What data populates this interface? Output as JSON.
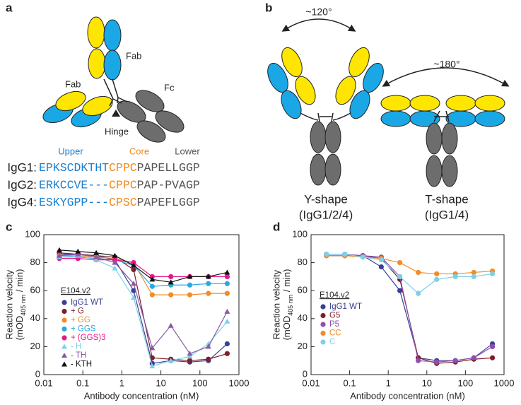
{
  "panel_a": {
    "label": "a",
    "fab_top": "Fab",
    "fab_left": "Fab",
    "fc": "Fc",
    "hinge": "Hinge",
    "regions": {
      "upper": "Upper",
      "core": "Core",
      "lower": "Lower"
    },
    "sequences": [
      {
        "name": "IgG1:",
        "upper": "EPKSCDKTHT",
        "core": "CPPC",
        "lower": "PAPELLGGP"
      },
      {
        "name": "IgG2:",
        "upper": "ERKCCVE---",
        "core": "CPPC",
        "lower": "PAP-PVAGP"
      },
      {
        "name": "IgG4:",
        "upper": "ESKYGPP---",
        "core": "CPSC",
        "lower": "PAPEFLGGP"
      }
    ]
  },
  "panel_b": {
    "label": "b",
    "angle_y": "~120°",
    "angle_t": "~180°",
    "y_shape": "Y-shape",
    "y_shape_note": "(IgG1/2/4)",
    "t_shape": "T-shape",
    "t_shape_note": "(IgG1/4)"
  },
  "chart_data": [
    {
      "type": "scatter",
      "panel": "c",
      "xscale": "log",
      "xlabel": "Antibody concentration (nM)",
      "ylabel": "Reaction velocity",
      "ylabel_unit": [
        "(mOD",
        "405 nm",
        " / min)"
      ],
      "legend_title": "E104.v2",
      "x": [
        0.025,
        0.075,
        0.22,
        0.66,
        2,
        6,
        18,
        55,
        165,
        500
      ],
      "xlim": [
        0.01,
        1000
      ],
      "xticks": [
        0.01,
        0.1,
        1,
        10,
        100,
        1000
      ],
      "ylim": [
        0,
        100
      ],
      "yticks": [
        0,
        20,
        40,
        60,
        80,
        100
      ],
      "series": [
        {
          "name": "IgG1 WT",
          "color": "#3a3f98",
          "marker": "circle",
          "values": [
            86,
            86,
            85,
            82,
            60,
            8,
            10,
            9,
            10,
            22
          ]
        },
        {
          "name": "+ G",
          "color": "#7d1f2e",
          "marker": "circle",
          "values": [
            87,
            86,
            85,
            84,
            75,
            12,
            11,
            10,
            11,
            15
          ]
        },
        {
          "name": "+ GG",
          "color": "#f38b26",
          "marker": "circle",
          "values": [
            85,
            85,
            84,
            83,
            80,
            57,
            57,
            57,
            58,
            58
          ]
        },
        {
          "name": "+ GGS",
          "color": "#2aa9df",
          "marker": "circle",
          "values": [
            84,
            84,
            83,
            82,
            78,
            63,
            64,
            64,
            65,
            65
          ]
        },
        {
          "name": "+ (GGS)3",
          "color": "#e5178b",
          "marker": "circle",
          "values": [
            83,
            83,
            82,
            82,
            80,
            70,
            70,
            70,
            70,
            70
          ]
        },
        {
          "name": "- H",
          "color": "#7fd0e6",
          "marker": "triangle",
          "values": [
            84,
            85,
            82,
            76,
            55,
            6,
            10,
            13,
            22,
            38
          ]
        },
        {
          "name": "- TH",
          "color": "#8a58a6",
          "marker": "triangle",
          "values": [
            85,
            86,
            84,
            80,
            65,
            19,
            35,
            15,
            20,
            45
          ]
        },
        {
          "name": "- KTH",
          "color": "#111111",
          "marker": "triangle",
          "values": [
            89,
            88,
            87,
            85,
            78,
            68,
            66,
            70,
            70,
            73
          ]
        }
      ]
    },
    {
      "type": "scatter",
      "panel": "d",
      "xscale": "log",
      "xlabel": "Antibody concentration (nM)",
      "ylabel": "Reaction velocity",
      "ylabel_unit": [
        "(mOD",
        "405 nm",
        " / min)"
      ],
      "legend_title": "E104.v2",
      "x": [
        0.025,
        0.075,
        0.22,
        0.66,
        2,
        6,
        18,
        55,
        165,
        500
      ],
      "xlim": [
        0.01,
        1000
      ],
      "xticks": [
        0.01,
        0.1,
        1,
        10,
        100,
        1000
      ],
      "ylim": [
        0,
        100
      ],
      "yticks": [
        0,
        20,
        40,
        60,
        80,
        100
      ],
      "series": [
        {
          "name": "IgG1 WT",
          "color": "#3a3f98",
          "marker": "circle",
          "values": [
            85,
            85,
            85,
            77,
            60,
            12,
            10,
            10,
            12,
            22
          ]
        },
        {
          "name": "G5",
          "color": "#7d1f2e",
          "marker": "circle",
          "values": [
            85,
            85,
            85,
            83,
            68,
            12,
            8,
            9,
            11,
            12
          ]
        },
        {
          "name": "P5",
          "color": "#8e4fb0",
          "marker": "circle",
          "values": [
            86,
            86,
            85,
            84,
            70,
            10,
            9,
            10,
            12,
            20
          ]
        },
        {
          "name": "CC",
          "color": "#f38b26",
          "marker": "circle",
          "values": [
            85,
            85,
            84,
            83,
            80,
            73,
            72,
            72,
            73,
            74
          ]
        },
        {
          "name": "C",
          "color": "#7fd0e6",
          "marker": "circle",
          "values": [
            86,
            86,
            84,
            82,
            70,
            58,
            68,
            70,
            70,
            72
          ]
        }
      ]
    }
  ]
}
